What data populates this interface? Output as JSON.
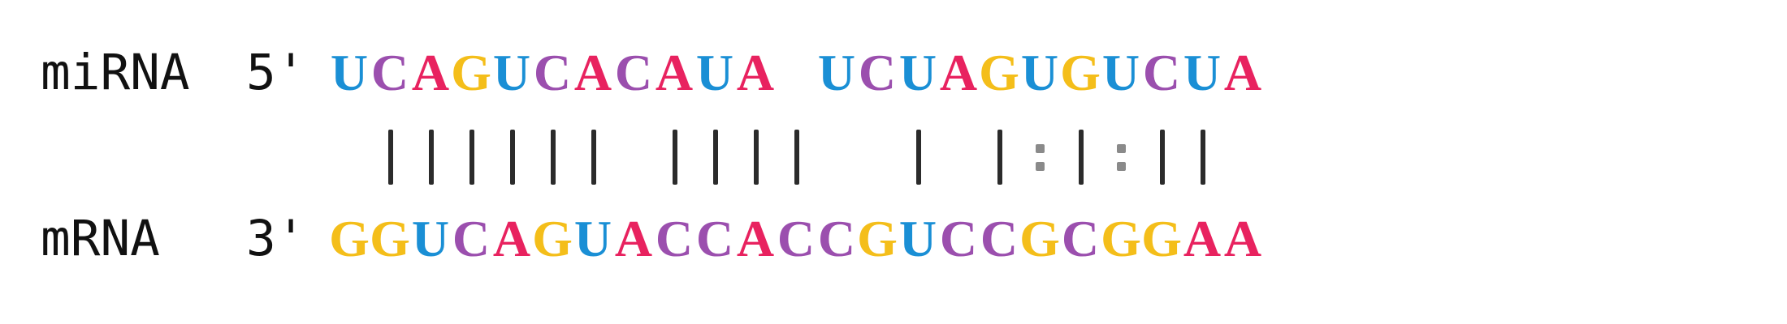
{
  "colors": {
    "A": "#e8225f",
    "C": "#9b4fae",
    "G": "#f4be1a",
    "U": "#1a8fd5",
    "pair_bar": "#2b2b2b",
    "wobble_dots": "#8a8a8a",
    "label_text": "#111111"
  },
  "mirna": {
    "label": "miRNA",
    "end": "5'",
    "sequence": "UCAGUCACAUA UCUAGUGUCUA"
  },
  "pairing": {
    "pattern": " |||||| ||||  | |:|:|| ",
    "legend_note": ""
  },
  "mrna": {
    "label": "mRNA",
    "end": "3'",
    "sequence": "GGUCAGUACCACCGUCCGCGGAA"
  }
}
